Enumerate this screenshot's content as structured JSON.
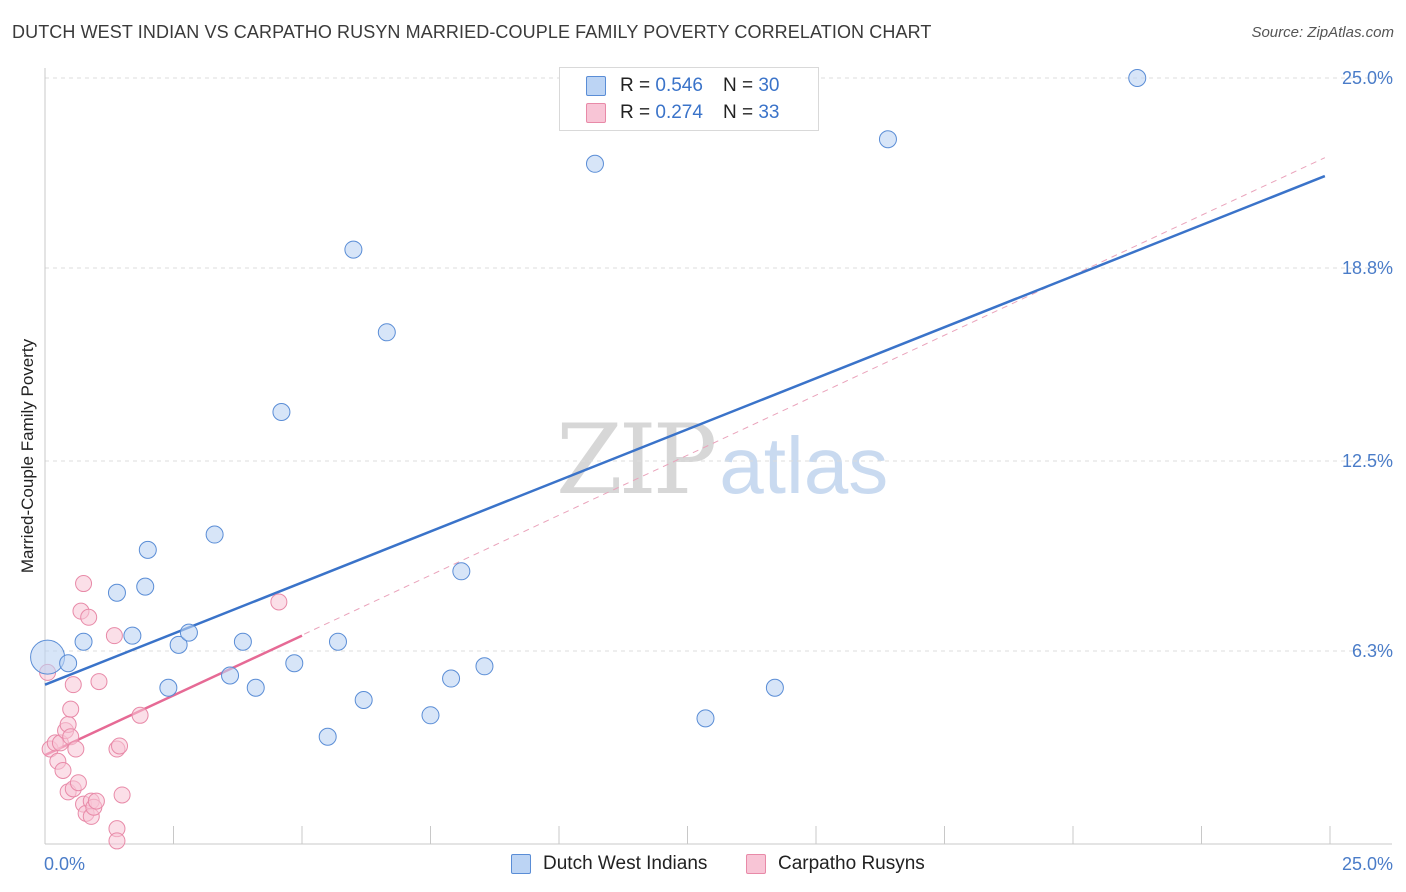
{
  "title": "DUTCH WEST INDIAN VS CARPATHO RUSYN MARRIED-COUPLE FAMILY POVERTY CORRELATION CHART",
  "source": "Source: ZipAtlas.com",
  "watermark": {
    "zip": "ZIP",
    "atlas": "atlas"
  },
  "colors": {
    "blue": "#3a73c9",
    "blue_fill": "#bcd4f4",
    "pink": "#e66a95",
    "pink_fill": "#f8c5d6",
    "tick": "#4a7cc8"
  },
  "legend": {
    "rows": [
      {
        "r_label": "R =",
        "r_value": "0.546",
        "n_label": "N =",
        "n_value": "30"
      },
      {
        "r_label": "R =",
        "r_value": "0.274",
        "n_label": "N =",
        "n_value": "33"
      }
    ]
  },
  "bottom_legend": [
    "Dutch West Indians",
    "Carpatho Rusyns"
  ],
  "chart_data": {
    "type": "scatter",
    "title": "DUTCH WEST INDIAN VS CARPATHO RUSYN MARRIED-COUPLE FAMILY POVERTY CORRELATION CHART",
    "xlabel": "",
    "ylabel": "Married-Couple Family Poverty",
    "xlim": [
      0,
      25
    ],
    "ylim": [
      0,
      25
    ],
    "x_tick_labels": [
      "0.0%",
      "25.0%"
    ],
    "y_ticks": [
      6.3,
      12.5,
      18.8,
      25.0
    ],
    "y_tick_labels": [
      "6.3%",
      "12.5%",
      "18.8%",
      "25.0%"
    ],
    "series": [
      {
        "name": "Dutch West Indians",
        "points": [
          [
            0.05,
            6.1
          ],
          [
            0.45,
            5.9
          ],
          [
            0.75,
            6.6
          ],
          [
            1.4,
            8.2
          ],
          [
            1.7,
            6.8
          ],
          [
            1.95,
            8.4
          ],
          [
            2.0,
            9.6
          ],
          [
            2.4,
            5.1
          ],
          [
            2.6,
            6.5
          ],
          [
            2.8,
            6.9
          ],
          [
            3.3,
            10.1
          ],
          [
            3.6,
            5.5
          ],
          [
            3.85,
            6.6
          ],
          [
            4.1,
            5.1
          ],
          [
            4.6,
            14.1
          ],
          [
            4.85,
            5.9
          ],
          [
            5.5,
            3.5
          ],
          [
            5.7,
            6.6
          ],
          [
            6.0,
            19.4
          ],
          [
            6.2,
            4.7
          ],
          [
            6.65,
            16.7
          ],
          [
            7.5,
            4.2
          ],
          [
            7.9,
            5.4
          ],
          [
            8.1,
            8.9
          ],
          [
            8.55,
            5.8
          ],
          [
            10.7,
            22.2
          ],
          [
            12.85,
            4.1
          ],
          [
            14.2,
            5.1
          ],
          [
            16.4,
            23.0
          ],
          [
            21.25,
            25.0
          ]
        ],
        "trend": {
          "x": [
            0,
            24.9
          ],
          "y": [
            5.2,
            21.8
          ]
        }
      },
      {
        "name": "Carpatho Rusyns",
        "points": [
          [
            0.05,
            5.6
          ],
          [
            0.1,
            3.1
          ],
          [
            0.2,
            3.3
          ],
          [
            0.25,
            2.7
          ],
          [
            0.3,
            3.3
          ],
          [
            0.35,
            2.4
          ],
          [
            0.4,
            3.7
          ],
          [
            0.45,
            3.9
          ],
          [
            0.45,
            1.7
          ],
          [
            0.5,
            3.5
          ],
          [
            0.5,
            4.4
          ],
          [
            0.55,
            1.8
          ],
          [
            0.55,
            5.2
          ],
          [
            0.6,
            3.1
          ],
          [
            0.65,
            2.0
          ],
          [
            0.7,
            7.6
          ],
          [
            0.75,
            1.3
          ],
          [
            0.75,
            8.5
          ],
          [
            0.8,
            1.0
          ],
          [
            0.85,
            7.4
          ],
          [
            0.9,
            1.4
          ],
          [
            0.9,
            0.9
          ],
          [
            0.95,
            1.2
          ],
          [
            1.0,
            1.4
          ],
          [
            1.05,
            5.3
          ],
          [
            1.35,
            6.8
          ],
          [
            1.4,
            0.5
          ],
          [
            1.4,
            0.1
          ],
          [
            1.4,
            3.1
          ],
          [
            1.45,
            3.2
          ],
          [
            1.5,
            1.6
          ],
          [
            1.85,
            4.2
          ],
          [
            4.55,
            7.9
          ]
        ],
        "trend": {
          "x": [
            0,
            5.0
          ],
          "y": [
            2.9,
            6.8
          ]
        },
        "extended_trend": {
          "x": [
            0,
            24.9
          ],
          "y": [
            2.9,
            22.4
          ]
        }
      }
    ]
  }
}
